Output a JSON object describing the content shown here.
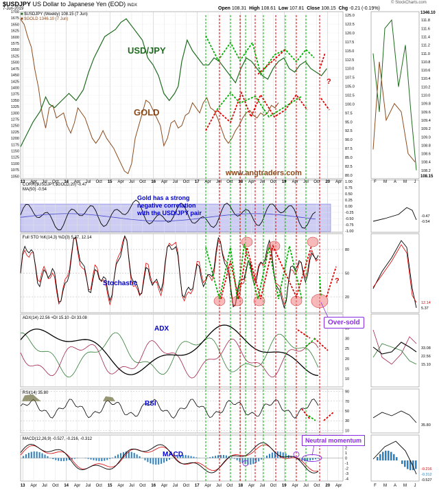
{
  "header": {
    "symbol": "$USDJPY",
    "description": "US Dollar to Japanese Yen (EOD)",
    "exchange": "INDX",
    "date": "7-Jun-2019",
    "open_label": "Open",
    "open": "108.31",
    "high_label": "High",
    "high": "108.61",
    "low_label": "Low",
    "low": "107.81",
    "close_label": "Close",
    "close": "108.15",
    "chg_label": "Chg",
    "chg": "-0.21 (-0.19%)",
    "watermark": "© StockCharts.com",
    "legend_usdjpy": "$USDJPY (Weekly) 108.15 (7 Jun)",
    "legend_gold": "$GOLD 1346.10 (7 Jun)"
  },
  "annotations": {
    "usdjpy": "USD/JPY",
    "gold": "GOLD",
    "website": "www.angtraders.com",
    "correlation_note": "Gold has a strong negative correlation with the USD/JPY pair",
    "stochastic": "Stochastic",
    "oversold": "Over-sold",
    "adx": "ADX",
    "rsi": "RSI",
    "macd": "MACD",
    "neutral_momentum": "Neutral momentum",
    "question": "?"
  },
  "colors": {
    "usdjpy": "#1e6b1e",
    "gold": "#8b4a1c",
    "red": "#e00000",
    "green": "#00b000",
    "blue": "#0000cc",
    "purple": "#8a2be2",
    "band": "#7070e0",
    "macd_hist": "#2a7fbf",
    "adx": "#000000",
    "di_plus": "#2e7d32",
    "di_minus": "#a0204a"
  },
  "chart_data": [
    {
      "type": "line",
      "title": "$USDJPY US Dollar to Japanese Yen (EOD)",
      "x_ticks": [
        "13",
        "Apr",
        "Jul",
        "Oct",
        "14",
        "Apr",
        "Jul",
        "Oct",
        "15",
        "Apr",
        "Jul",
        "Oct",
        "16",
        "Apr",
        "Jul",
        "Oct",
        "17",
        "Apr",
        "Jul",
        "Oct",
        "18",
        "Apr",
        "Jul",
        "Oct",
        "19",
        "Apr",
        "Jul",
        "Oct",
        "20",
        "Apr"
      ],
      "left_axis_ticks": [
        "1700",
        "1675",
        "1650",
        "1625",
        "1600",
        "1575",
        "1550",
        "1525",
        "1500",
        "1475",
        "1450",
        "1425",
        "1400",
        "1375",
        "1350",
        "1325",
        "1300",
        "1275",
        "1250",
        "1225",
        "1200",
        "1175",
        "1150",
        "1125",
        "1100",
        "1075",
        "1050"
      ],
      "right_axis_ticks": [
        "125.0",
        "122.5",
        "120.0",
        "117.5",
        "115.0",
        "112.5",
        "110.0",
        "107.5",
        "105.0",
        "102.5",
        "100.0",
        "97.5",
        "95.0",
        "92.5",
        "90.0",
        "87.5",
        "85.0",
        "82.5",
        "80.0"
      ],
      "series": [
        {
          "name": "$USDJPY (Weekly)",
          "axis": "right",
          "values": [
            [
              0,
              88
            ],
            [
              8,
              92
            ],
            [
              14,
              95
            ],
            [
              22,
              98
            ],
            [
              28,
              102
            ],
            [
              32,
              100
            ],
            [
              38,
              99
            ],
            [
              46,
              101
            ],
            [
              54,
              103
            ],
            [
              62,
              101
            ],
            [
              70,
              104
            ],
            [
              76,
              109
            ],
            [
              82,
              113
            ],
            [
              88,
              116
            ],
            [
              94,
              119
            ],
            [
              100,
              120
            ],
            [
              106,
              121
            ],
            [
              112,
              123
            ],
            [
              118,
              124
            ],
            [
              124,
              122
            ],
            [
              130,
              120
            ],
            [
              136,
              118
            ],
            [
              142,
              113
            ],
            [
              148,
              111
            ],
            [
              154,
              108
            ],
            [
              160,
              103
            ],
            [
              166,
              101
            ],
            [
              172,
              103
            ],
            [
              176,
              105
            ],
            [
              180,
              112
            ],
            [
              186,
              118
            ],
            [
              192,
              115
            ],
            [
              198,
              113
            ],
            [
              204,
              111
            ],
            [
              210,
              111
            ],
            [
              216,
              113
            ],
            [
              222,
              112
            ],
            [
              228,
              110
            ],
            [
              234,
              108
            ],
            [
              240,
              106
            ],
            [
              246,
              110
            ],
            [
              252,
              113
            ],
            [
              258,
              112
            ],
            [
              264,
              110
            ],
            [
              270,
              108
            ],
            [
              276,
              107
            ],
            [
              282,
              110
            ],
            [
              288,
              112
            ],
            [
              294,
              113
            ],
            [
              300,
              110
            ],
            [
              306,
              109
            ],
            [
              312,
              111
            ],
            [
              318,
              112
            ],
            [
              324,
              110
            ],
            [
              330,
              109
            ],
            [
              336,
              108
            ],
            [
              342,
              110
            ]
          ]
        },
        {
          "name": "$GOLD",
          "axis": "left",
          "values": [
            [
              0,
              1670
            ],
            [
              4,
              1650
            ],
            [
              8,
              1600
            ],
            [
              12,
              1560
            ],
            [
              16,
              1470
            ],
            [
              20,
              1400
            ],
            [
              24,
              1300
            ],
            [
              28,
              1240
            ],
            [
              32,
              1320
            ],
            [
              36,
              1330
            ],
            [
              40,
              1280
            ],
            [
              44,
              1290
            ],
            [
              48,
              1300
            ],
            [
              52,
              1250
            ],
            [
              56,
              1220
            ],
            [
              60,
              1260
            ],
            [
              64,
              1320
            ],
            [
              68,
              1300
            ],
            [
              72,
              1280
            ],
            [
              76,
              1240
            ],
            [
              80,
              1200
            ],
            [
              84,
              1180
            ],
            [
              88,
              1200
            ],
            [
              92,
              1230
            ],
            [
              96,
              1200
            ],
            [
              100,
              1180
            ],
            [
              104,
              1160
            ],
            [
              108,
              1130
            ],
            [
              112,
              1100
            ],
            [
              116,
              1070
            ],
            [
              120,
              1060
            ],
            [
              124,
              1100
            ],
            [
              128,
              1200
            ],
            [
              132,
              1250
            ],
            [
              136,
              1300
            ],
            [
              140,
              1350
            ],
            [
              144,
              1340
            ],
            [
              148,
              1310
            ],
            [
              152,
              1280
            ],
            [
              156,
              1250
            ],
            [
              160,
              1170
            ],
            [
              164,
              1200
            ],
            [
              168,
              1260
            ],
            [
              172,
              1270
            ],
            [
              176,
              1240
            ],
            [
              180,
              1250
            ],
            [
              184,
              1290
            ],
            [
              188,
              1300
            ],
            [
              192,
              1340
            ],
            [
              196,
              1320
            ],
            [
              200,
              1300
            ],
            [
              204,
              1340
            ],
            [
              208,
              1360
            ],
            [
              212,
              1320
            ],
            [
              216,
              1310
            ],
            [
              220,
              1280
            ],
            [
              224,
              1240
            ],
            [
              228,
              1200
            ],
            [
              232,
              1180
            ],
            [
              236,
              1200
            ],
            [
              240,
              1230
            ],
            [
              244,
              1250
            ],
            [
              248,
              1280
            ],
            [
              252,
              1300
            ],
            [
              256,
              1310
            ],
            [
              260,
              1290
            ],
            [
              264,
              1280
            ],
            [
              268,
              1300
            ],
            [
              272,
              1290
            ],
            [
              276,
              1300
            ],
            [
              280,
              1330
            ],
            [
              284,
              1320
            ],
            [
              288,
              1340
            ]
          ]
        }
      ]
    },
    {
      "type": "line",
      "title": "CORR($USDJPY,$GOLD,20) -0.47",
      "legend": [
        "CORR($USDJPY,$GOLD,20) -0.47",
        "MA(50) -0.54"
      ],
      "y_ticks": [
        "1.00",
        "0.75",
        "0.50",
        "0.25",
        "0.00",
        "-0.25",
        "-0.50",
        "-0.75",
        "-1.00"
      ]
    },
    {
      "type": "line",
      "title": "Full STO %K(14,3) %D(3) 5.37, 12.14",
      "y_ticks": [
        "80",
        "50",
        "20"
      ]
    },
    {
      "type": "line",
      "title": "ADX(14) 22.56 +DI 15.10 -DI 33.08",
      "y_ticks": [
        "40",
        "35",
        "30",
        "25",
        "20",
        "15",
        "10"
      ]
    },
    {
      "type": "line",
      "title": "RSI(14) 35.80",
      "y_ticks": [
        "90",
        "70",
        "50",
        "30",
        "10"
      ]
    },
    {
      "type": "line",
      "title": "MACD(12,26,9) -0.527, -0.216, -0.312",
      "y_ticks": [
        "4",
        "3",
        "2",
        "1",
        "0",
        "-1",
        "-2",
        "-3",
        "-4"
      ]
    }
  ],
  "right_panel": {
    "x_ticks": [
      "F",
      "M",
      "A",
      "M",
      "J"
    ],
    "price_ticks": [
      "111.8",
      "111.6",
      "111.4",
      "111.2",
      "111.0",
      "110.8",
      "110.6",
      "110.4",
      "110.2",
      "110.0",
      "109.8",
      "109.6",
      "109.4",
      "109.2",
      "109.0",
      "108.8",
      "108.6",
      "108.4",
      "108.2"
    ],
    "last_price": "108.15",
    "top_value": "1346.10",
    "corr_values": [
      "-0.47",
      "-0.54"
    ],
    "sto_values": [
      "12.14",
      "5.37"
    ],
    "adx_values": [
      "33.08",
      "22.56",
      "15.10"
    ],
    "rsi_value": "35.80",
    "macd_values": [
      "-0.216",
      "-0.312",
      "-0.527"
    ]
  }
}
